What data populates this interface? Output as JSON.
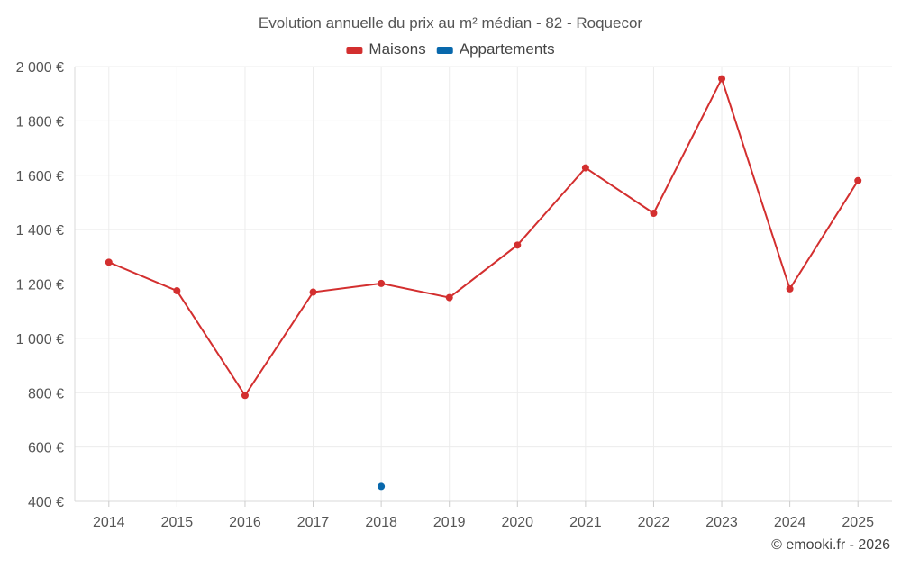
{
  "chart_data": {
    "type": "line",
    "title": "Evolution annuelle du prix au m² médian - 82 - Roquecor",
    "categories": [
      "2014",
      "2015",
      "2016",
      "2017",
      "2018",
      "2019",
      "2020",
      "2021",
      "2022",
      "2023",
      "2024",
      "2025"
    ],
    "series": [
      {
        "name": "Maisons",
        "color": "#d32f2f",
        "values": [
          1280,
          1175,
          790,
          1170,
          1202,
          1150,
          1343,
          1627,
          1460,
          1955,
          1182,
          1580
        ]
      },
      {
        "name": "Appartements",
        "color": "#0868ac",
        "values": [
          null,
          null,
          null,
          null,
          455,
          null,
          null,
          null,
          null,
          null,
          null,
          null
        ]
      }
    ],
    "ylim": [
      400,
      2000
    ],
    "yticks": [
      400,
      600,
      800,
      1000,
      1200,
      1400,
      1600,
      1800,
      2000
    ],
    "ytick_labels": [
      "400 €",
      "600 €",
      "800 €",
      "1 000 €",
      "1 200 €",
      "1 400 €",
      "1 600 €",
      "1 800 €",
      "2 000 €"
    ],
    "grid": true,
    "legend_position": "top-center"
  },
  "footer": {
    "credit": "© emooki.fr - 2026"
  }
}
